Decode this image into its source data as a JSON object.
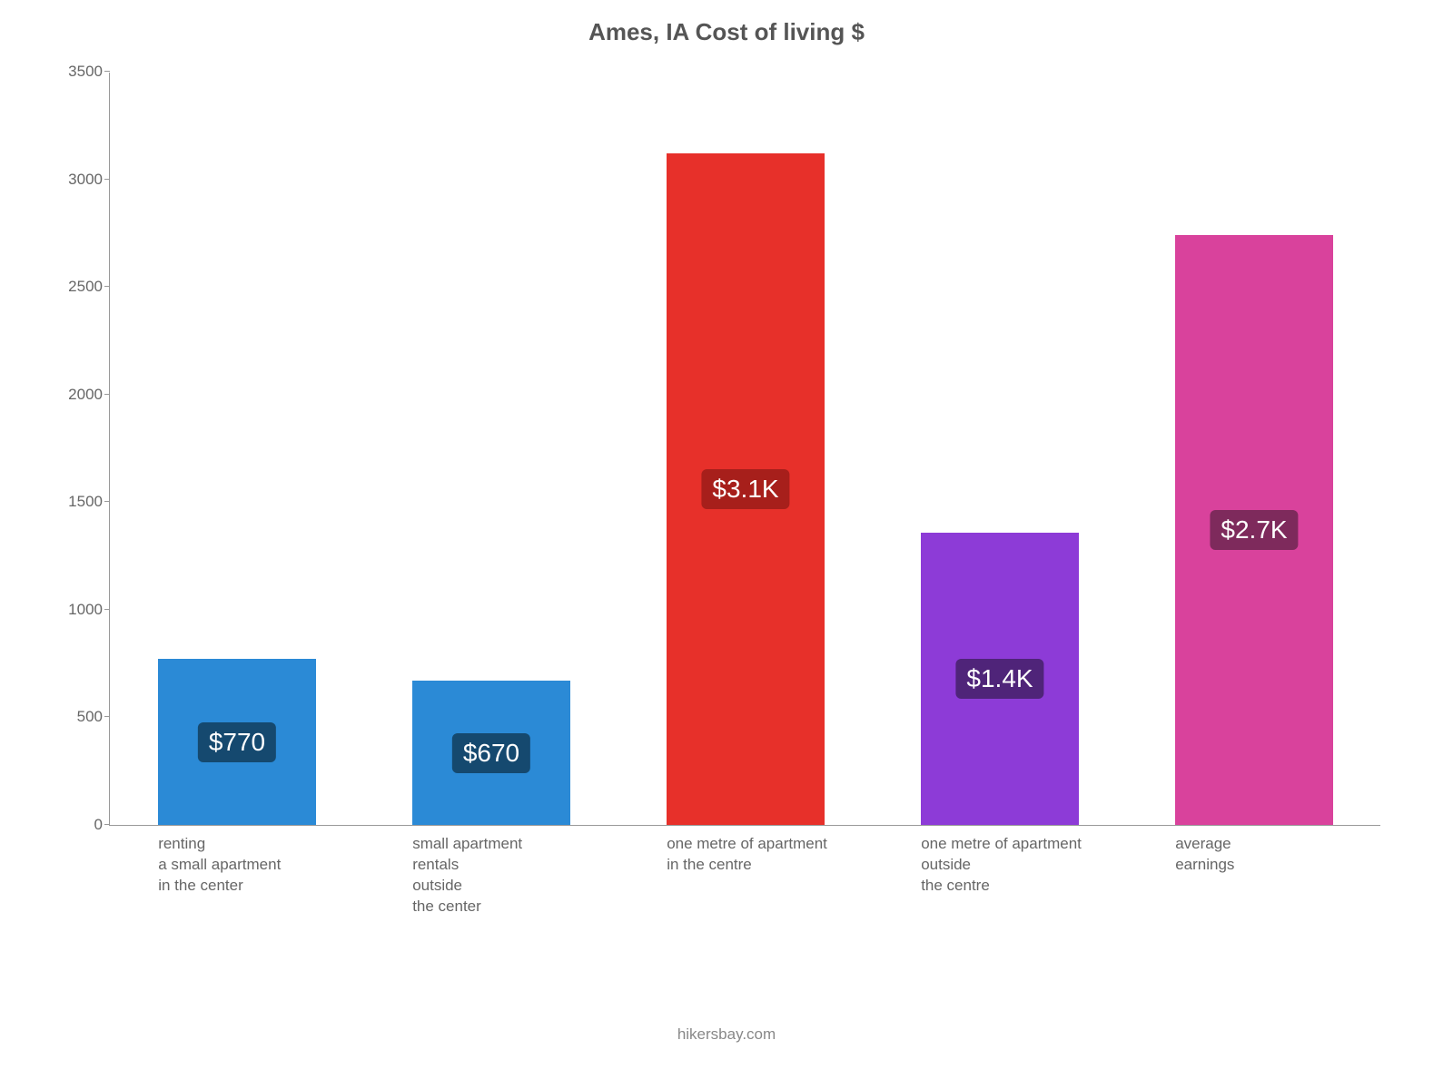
{
  "chart": {
    "type": "bar",
    "title": "Ames, IA Cost of living $",
    "title_fontsize": 26,
    "title_color": "#555555",
    "background_color": "#ffffff",
    "axis_color": "#999999",
    "tick_label_color": "#666666",
    "tick_label_fontsize": 17,
    "xlabel_fontsize": 17,
    "xlabel_color": "#666666",
    "ylim": [
      0,
      3500
    ],
    "ytick_step": 500,
    "yticks": [
      "0",
      "500",
      "1000",
      "1500",
      "2000",
      "2500",
      "3000",
      "3500"
    ],
    "bar_width_ratio": 0.62,
    "badge_fontsize": 28,
    "badge_text_color": "#ffffff",
    "badge_radius": 6,
    "footer": "hikersbay.com",
    "footer_color": "#888888",
    "footer_fontsize": 17,
    "bars": [
      {
        "category": "renting\na small apartment\nin the center",
        "value": 770,
        "label": "$770",
        "bar_color": "#2b8ad6",
        "badge_color": "#15496f"
      },
      {
        "category": "small apartment\nrentals\noutside\nthe center",
        "value": 670,
        "label": "$670",
        "bar_color": "#2b8ad6",
        "badge_color": "#15496f"
      },
      {
        "category": "one metre of apartment\nin the centre",
        "value": 3120,
        "label": "$3.1K",
        "bar_color": "#e7302a",
        "badge_color": "#a71f1b"
      },
      {
        "category": "one metre of apartment\noutside\nthe centre",
        "value": 1360,
        "label": "$1.4K",
        "bar_color": "#8d3bd7",
        "badge_color": "#4f2479"
      },
      {
        "category": "average\nearnings",
        "value": 2740,
        "label": "$2.7K",
        "bar_color": "#d9429c",
        "badge_color": "#7e2a5c"
      }
    ]
  }
}
